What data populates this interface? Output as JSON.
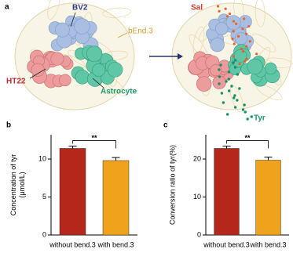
{
  "diagram": {
    "panel": "a",
    "labels": {
      "bv2": "BV2",
      "bend": "bEnd.3",
      "ht22": "HT22",
      "astrocyte": "Astrocyte",
      "sal": "Sal",
      "tyr": "Tyr"
    }
  },
  "chart_data": [
    {
      "type": "bar",
      "panel": "b",
      "ylabel": [
        "Concentration of tyr",
        "(μmol/L)"
      ],
      "categories": [
        "without bend.3",
        "with bend.3"
      ],
      "values": [
        11.4,
        9.8
      ],
      "errors": [
        0.3,
        0.4
      ],
      "colors": [
        "#b5271b",
        "#efa21c"
      ],
      "ylim": [
        0,
        13.2
      ],
      "yticks": [
        0,
        5,
        10
      ],
      "annotation": "**"
    },
    {
      "type": "bar",
      "panel": "c",
      "ylabel": [
        "Conversion ratio of tyr(%)"
      ],
      "categories": [
        "without bend.3",
        "with bend.3"
      ],
      "values": [
        22.8,
        19.7
      ],
      "errors": [
        0.6,
        0.8
      ],
      "colors": [
        "#b5271b",
        "#efa21c"
      ],
      "ylim": [
        0,
        26.4
      ],
      "yticks": [
        0,
        10,
        20
      ],
      "annotation": "**"
    }
  ]
}
